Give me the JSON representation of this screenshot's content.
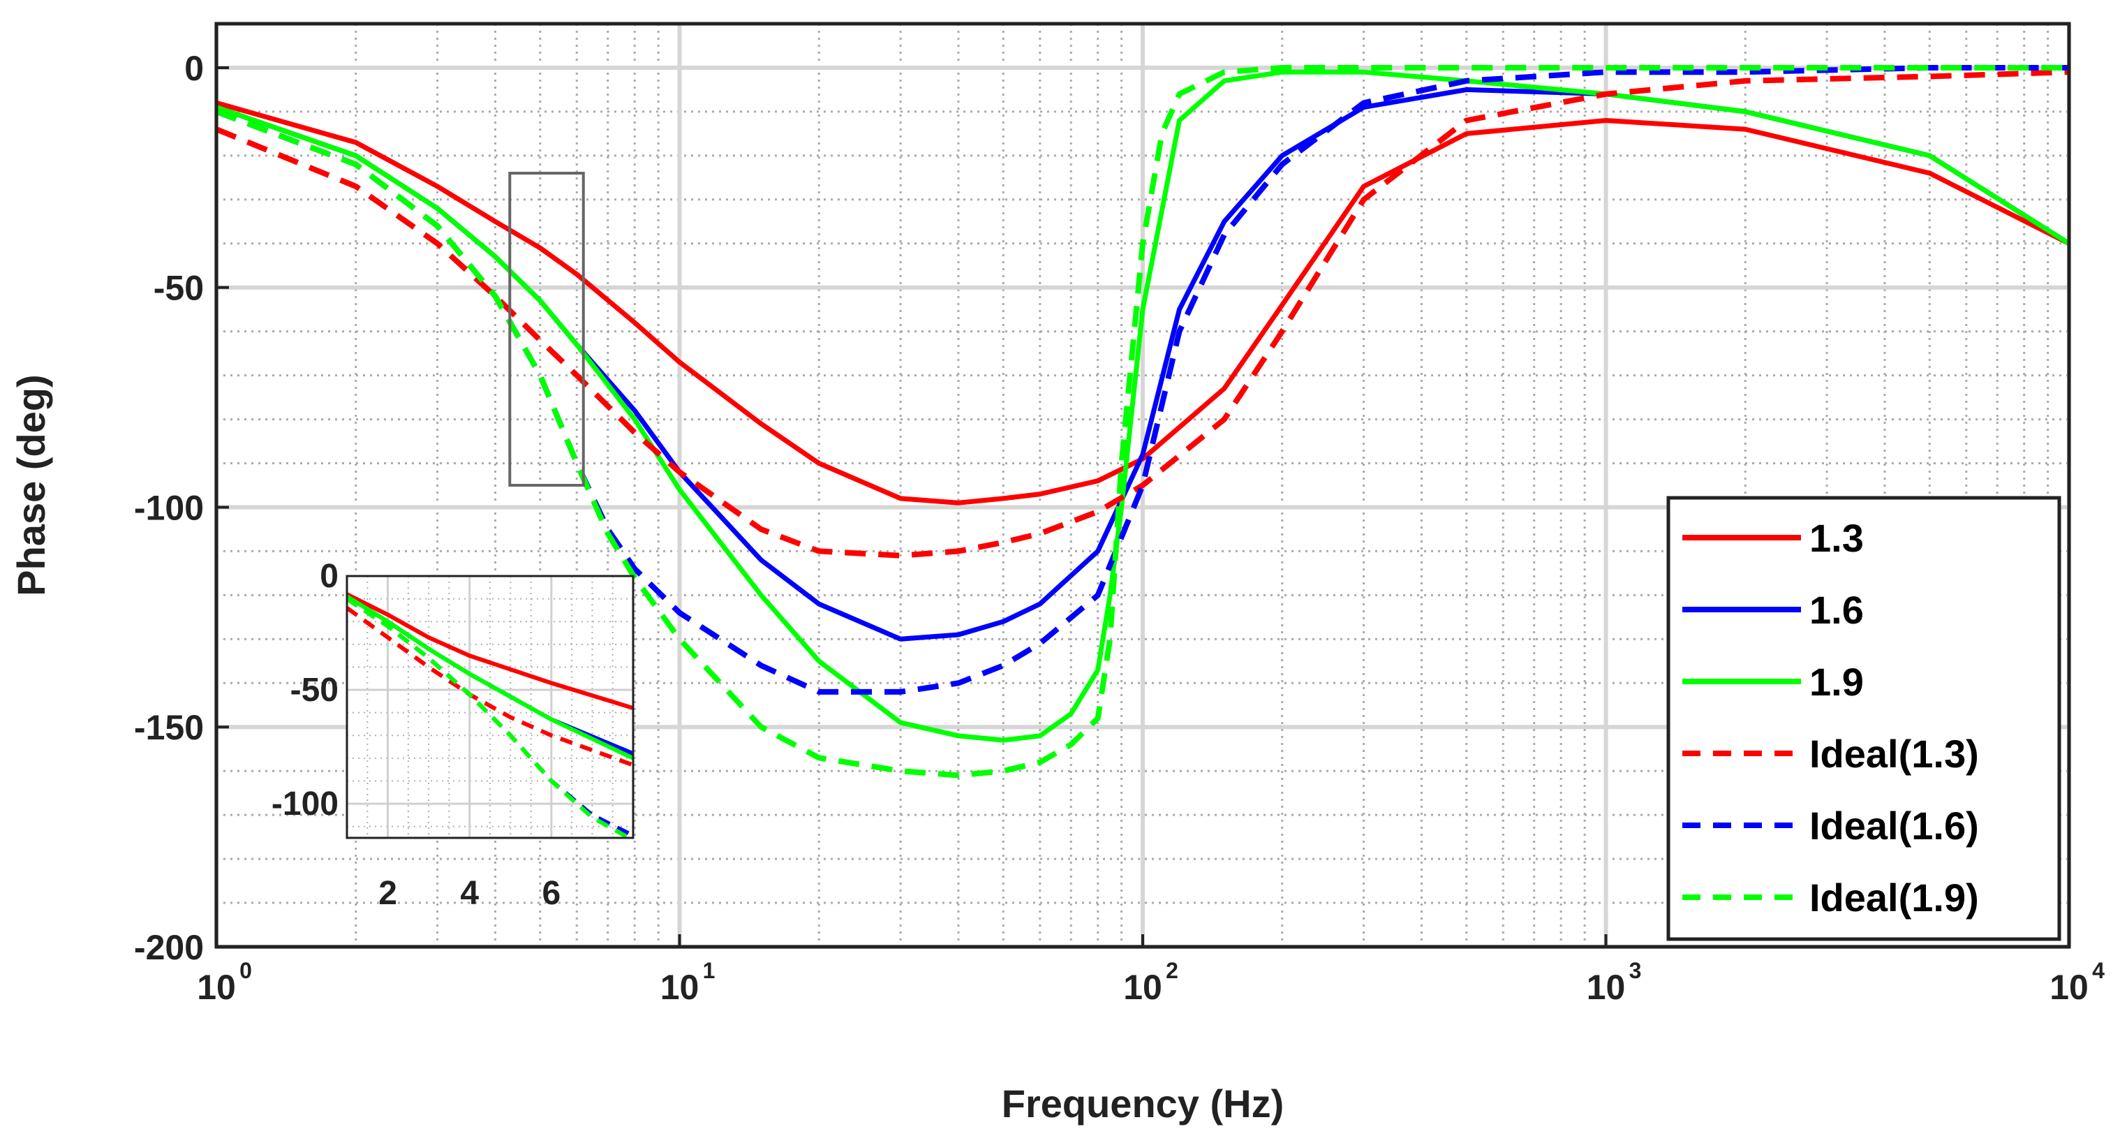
{
  "chart_data": {
    "type": "line",
    "xscale": "log",
    "xlabel": "Frequency (Hz)",
    "ylabel": "Phase (deg)",
    "xlim": [
      1,
      10000
    ],
    "ylim": [
      -200,
      10
    ],
    "grid": true,
    "xticks": [
      {
        "value": 1,
        "base": "10",
        "exp": "0"
      },
      {
        "value": 10,
        "base": "10",
        "exp": "1"
      },
      {
        "value": 100,
        "base": "10",
        "exp": "2"
      },
      {
        "value": 1000,
        "base": "10",
        "exp": "3"
      },
      {
        "value": 10000,
        "base": "10",
        "exp": "4"
      }
    ],
    "yticks": [
      {
        "value": 0,
        "label": "0"
      },
      {
        "value": -50,
        "label": "-50"
      },
      {
        "value": -100,
        "label": "-100"
      },
      {
        "value": -150,
        "label": "-150"
      },
      {
        "value": -200,
        "label": "-200"
      }
    ],
    "legend_position": "bottom-right",
    "series": [
      {
        "name": "1.3",
        "color": "#ff0000",
        "style": "solid",
        "x": [
          1,
          2,
          3,
          4,
          5,
          6,
          8,
          10,
          15,
          20,
          30,
          40,
          50,
          60,
          80,
          100,
          150,
          200,
          300,
          500,
          1000,
          2000,
          5000,
          10000
        ],
        "y": [
          -8,
          -17,
          -27,
          -35,
          -41,
          -47,
          -58,
          -67,
          -81,
          -90,
          -98,
          -99,
          -98,
          -97,
          -94,
          -89,
          -73,
          -54,
          -27,
          -15,
          -12,
          -14,
          -24,
          -40
        ]
      },
      {
        "name": "1.6",
        "color": "#0000ff",
        "style": "solid",
        "x": [
          1,
          2,
          3,
          4,
          5,
          6,
          8,
          10,
          15,
          20,
          30,
          40,
          50,
          60,
          80,
          100,
          120,
          150,
          200,
          300,
          500,
          1000,
          2000,
          5000,
          10000
        ],
        "y": [
          -9,
          -20,
          -32,
          -43,
          -53,
          -63,
          -78,
          -92,
          -112,
          -122,
          -130,
          -129,
          -126,
          -122,
          -110,
          -88,
          -55,
          -35,
          -20,
          -9,
          -5,
          -6,
          -10,
          -20,
          -40
        ]
      },
      {
        "name": "1.9",
        "color": "#00ff00",
        "style": "solid",
        "x": [
          1,
          2,
          3,
          4,
          5,
          6,
          8,
          10,
          15,
          20,
          30,
          40,
          50,
          60,
          70,
          80,
          85,
          90,
          100,
          120,
          150,
          200,
          300,
          500,
          1000,
          2000,
          5000,
          10000
        ],
        "y": [
          -9,
          -20,
          -32,
          -43,
          -53,
          -63,
          -80,
          -96,
          -120,
          -135,
          -149,
          -152,
          -153,
          -152,
          -147,
          -137,
          -120,
          -100,
          -55,
          -12,
          -3,
          -1,
          -1,
          -3,
          -6,
          -10,
          -20,
          -40
        ]
      },
      {
        "name": "Ideal(1.3)",
        "color": "#ff0000",
        "style": "dashed",
        "x": [
          1,
          2,
          3,
          4,
          5,
          6,
          8,
          10,
          15,
          20,
          30,
          40,
          50,
          60,
          80,
          100,
          150,
          200,
          300,
          500,
          1000,
          2000,
          5000,
          10000
        ],
        "y": [
          -14,
          -27,
          -40,
          -52,
          -62,
          -70,
          -83,
          -92,
          -105,
          -110,
          -111,
          -110,
          -108,
          -106,
          -101,
          -95,
          -80,
          -60,
          -30,
          -12,
          -6,
          -3,
          -2,
          -1
        ]
      },
      {
        "name": "Ideal(1.6)",
        "color": "#0000ff",
        "style": "dashed",
        "x": [
          1,
          2,
          3,
          4,
          5,
          6,
          7,
          8,
          10,
          15,
          20,
          30,
          40,
          50,
          60,
          80,
          100,
          120,
          150,
          200,
          300,
          500,
          1000,
          2000,
          5000,
          10000
        ],
        "y": [
          -10,
          -22,
          -36,
          -52,
          -70,
          -90,
          -105,
          -114,
          -124,
          -136,
          -142,
          -142,
          -140,
          -136,
          -131,
          -120,
          -95,
          -60,
          -38,
          -22,
          -8,
          -3,
          -1,
          -1,
          0,
          0
        ]
      },
      {
        "name": "Ideal(1.9)",
        "color": "#00ff00",
        "style": "dashed",
        "x": [
          1,
          2,
          3,
          4,
          5,
          6,
          7,
          8,
          10,
          15,
          20,
          30,
          40,
          50,
          60,
          70,
          80,
          85,
          90,
          100,
          110,
          120,
          150,
          200,
          300,
          1000,
          10000
        ],
        "y": [
          -10,
          -22,
          -36,
          -52,
          -70,
          -90,
          -106,
          -116,
          -130,
          -150,
          -157,
          -160,
          -161,
          -160,
          -158,
          -154,
          -148,
          -130,
          -90,
          -40,
          -15,
          -6,
          -1,
          0,
          0,
          0,
          0
        ]
      }
    ],
    "inset": {
      "xlim": [
        1,
        8
      ],
      "ylim": [
        -115,
        0
      ],
      "xticks": [
        {
          "value": 2,
          "label": "2"
        },
        {
          "value": 4,
          "label": "4"
        },
        {
          "value": 6,
          "label": "6"
        }
      ],
      "yticks": [
        {
          "value": 0,
          "label": "0"
        },
        {
          "value": -50,
          "label": "-50"
        },
        {
          "value": -100,
          "label": "-100"
        }
      ],
      "zoom_region": {
        "x": [
          4.3,
          6.2
        ],
        "y": [
          -95,
          -24
        ]
      }
    }
  }
}
